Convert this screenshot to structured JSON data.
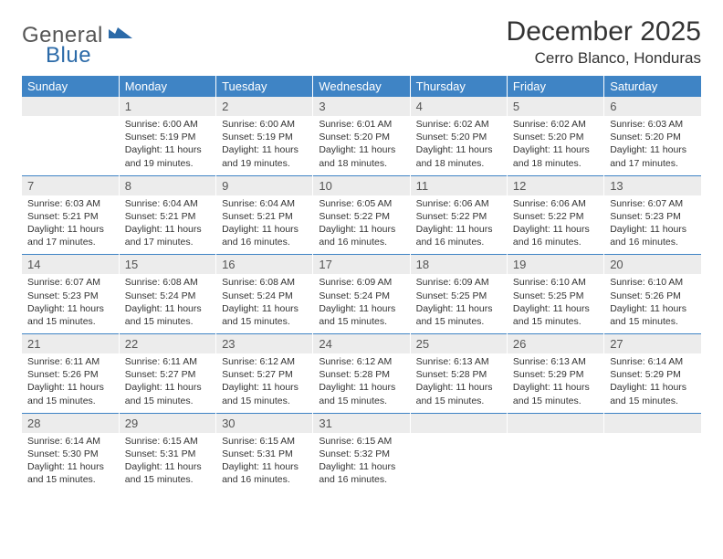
{
  "logo": {
    "text1": "General",
    "text2": "Blue"
  },
  "title": "December 2025",
  "location": "Cerro Blanco, Honduras",
  "colors": {
    "header_bg": "#3f84c5",
    "header_text": "#ffffff",
    "daynum_bg": "#ececec",
    "separator": "#3f84c5",
    "logo_blue": "#2b6aa8"
  },
  "day_headers": [
    "Sunday",
    "Monday",
    "Tuesday",
    "Wednesday",
    "Thursday",
    "Friday",
    "Saturday"
  ],
  "weeks": [
    [
      null,
      {
        "n": "1",
        "sr": "6:00 AM",
        "ss": "5:19 PM",
        "dl": "11 hours and 19 minutes."
      },
      {
        "n": "2",
        "sr": "6:00 AM",
        "ss": "5:19 PM",
        "dl": "11 hours and 19 minutes."
      },
      {
        "n": "3",
        "sr": "6:01 AM",
        "ss": "5:20 PM",
        "dl": "11 hours and 18 minutes."
      },
      {
        "n": "4",
        "sr": "6:02 AM",
        "ss": "5:20 PM",
        "dl": "11 hours and 18 minutes."
      },
      {
        "n": "5",
        "sr": "6:02 AM",
        "ss": "5:20 PM",
        "dl": "11 hours and 18 minutes."
      },
      {
        "n": "6",
        "sr": "6:03 AM",
        "ss": "5:20 PM",
        "dl": "11 hours and 17 minutes."
      }
    ],
    [
      {
        "n": "7",
        "sr": "6:03 AM",
        "ss": "5:21 PM",
        "dl": "11 hours and 17 minutes."
      },
      {
        "n": "8",
        "sr": "6:04 AM",
        "ss": "5:21 PM",
        "dl": "11 hours and 17 minutes."
      },
      {
        "n": "9",
        "sr": "6:04 AM",
        "ss": "5:21 PM",
        "dl": "11 hours and 16 minutes."
      },
      {
        "n": "10",
        "sr": "6:05 AM",
        "ss": "5:22 PM",
        "dl": "11 hours and 16 minutes."
      },
      {
        "n": "11",
        "sr": "6:06 AM",
        "ss": "5:22 PM",
        "dl": "11 hours and 16 minutes."
      },
      {
        "n": "12",
        "sr": "6:06 AM",
        "ss": "5:22 PM",
        "dl": "11 hours and 16 minutes."
      },
      {
        "n": "13",
        "sr": "6:07 AM",
        "ss": "5:23 PM",
        "dl": "11 hours and 16 minutes."
      }
    ],
    [
      {
        "n": "14",
        "sr": "6:07 AM",
        "ss": "5:23 PM",
        "dl": "11 hours and 15 minutes."
      },
      {
        "n": "15",
        "sr": "6:08 AM",
        "ss": "5:24 PM",
        "dl": "11 hours and 15 minutes."
      },
      {
        "n": "16",
        "sr": "6:08 AM",
        "ss": "5:24 PM",
        "dl": "11 hours and 15 minutes."
      },
      {
        "n": "17",
        "sr": "6:09 AM",
        "ss": "5:24 PM",
        "dl": "11 hours and 15 minutes."
      },
      {
        "n": "18",
        "sr": "6:09 AM",
        "ss": "5:25 PM",
        "dl": "11 hours and 15 minutes."
      },
      {
        "n": "19",
        "sr": "6:10 AM",
        "ss": "5:25 PM",
        "dl": "11 hours and 15 minutes."
      },
      {
        "n": "20",
        "sr": "6:10 AM",
        "ss": "5:26 PM",
        "dl": "11 hours and 15 minutes."
      }
    ],
    [
      {
        "n": "21",
        "sr": "6:11 AM",
        "ss": "5:26 PM",
        "dl": "11 hours and 15 minutes."
      },
      {
        "n": "22",
        "sr": "6:11 AM",
        "ss": "5:27 PM",
        "dl": "11 hours and 15 minutes."
      },
      {
        "n": "23",
        "sr": "6:12 AM",
        "ss": "5:27 PM",
        "dl": "11 hours and 15 minutes."
      },
      {
        "n": "24",
        "sr": "6:12 AM",
        "ss": "5:28 PM",
        "dl": "11 hours and 15 minutes."
      },
      {
        "n": "25",
        "sr": "6:13 AM",
        "ss": "5:28 PM",
        "dl": "11 hours and 15 minutes."
      },
      {
        "n": "26",
        "sr": "6:13 AM",
        "ss": "5:29 PM",
        "dl": "11 hours and 15 minutes."
      },
      {
        "n": "27",
        "sr": "6:14 AM",
        "ss": "5:29 PM",
        "dl": "11 hours and 15 minutes."
      }
    ],
    [
      {
        "n": "28",
        "sr": "6:14 AM",
        "ss": "5:30 PM",
        "dl": "11 hours and 15 minutes."
      },
      {
        "n": "29",
        "sr": "6:15 AM",
        "ss": "5:31 PM",
        "dl": "11 hours and 15 minutes."
      },
      {
        "n": "30",
        "sr": "6:15 AM",
        "ss": "5:31 PM",
        "dl": "11 hours and 16 minutes."
      },
      {
        "n": "31",
        "sr": "6:15 AM",
        "ss": "5:32 PM",
        "dl": "11 hours and 16 minutes."
      },
      null,
      null,
      null
    ]
  ],
  "labels": {
    "sunrise": "Sunrise:",
    "sunset": "Sunset:",
    "daylight": "Daylight:"
  }
}
